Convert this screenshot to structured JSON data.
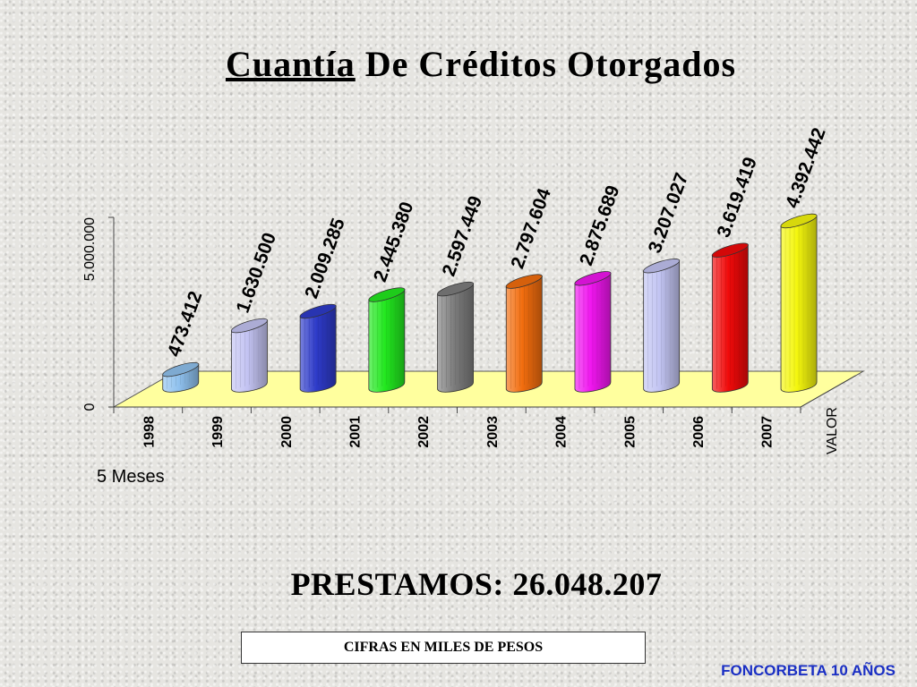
{
  "title": {
    "underlined": "Cuantía",
    "rest": " De Créditos Otorgados"
  },
  "total_label": "PRESTAMOS: 26.048.207",
  "note": "5 Meses",
  "units_box": "CIFRAS EN MILES DE PESOS",
  "footer": "FONCORBETA 10 AÑOS",
  "chart_data": {
    "type": "bar",
    "categories": [
      "1998",
      "1999",
      "2000",
      "2001",
      "2002",
      "2003",
      "2004",
      "2005",
      "2006",
      "2007"
    ],
    "series": [
      {
        "name": "VALOR",
        "values": [
          473412,
          1630500,
          2009285,
          2445380,
          2597449,
          2797604,
          2875689,
          3207027,
          3619419,
          4392442
        ],
        "labels": [
          "473.412",
          "1.630.500",
          "2.009.285",
          "2.445.380",
          "2.597.449",
          "2.797.604",
          "2.875.689",
          "3.207.027",
          "3.619.419",
          "4.392.442"
        ]
      }
    ],
    "colors": [
      "#8fc1ee",
      "#c3c3f2",
      "#2e3bc9",
      "#22e81f",
      "#7d7d7d",
      "#f26d0e",
      "#f016ef",
      "#c2c4f2",
      "#f00a0a",
      "#f4f60e"
    ],
    "floor_color": "#ffff9e",
    "yticks": [
      {
        "value": 0,
        "label": "0"
      },
      {
        "value": 5000000,
        "label": "5.000.000"
      }
    ],
    "ylim": [
      0,
      5000000
    ],
    "depth_label": "VALOR",
    "xlabel": "",
    "ylabel": ""
  }
}
